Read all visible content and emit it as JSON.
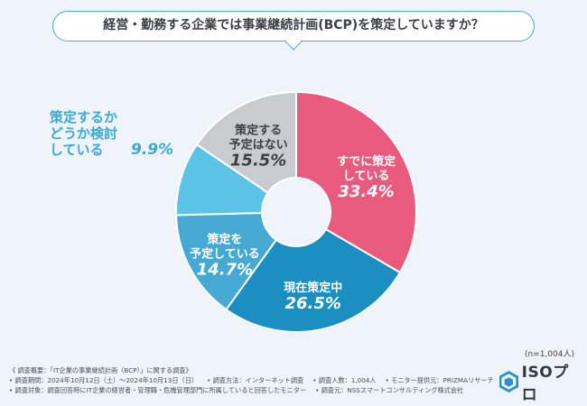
{
  "title": "経営・勤務する企業では事業継続計画(BCP)を策定していますか？",
  "sample_size": "(n=1,004人)",
  "chart_data": {
    "type": "pie",
    "donut": true,
    "title": "経営・勤務する企業では事業継続計画(BCP)を策定していますか？",
    "start": "top, clockwise",
    "slices": [
      {
        "lines": [
          "すでに策定",
          "している"
        ],
        "value": 33.4,
        "pct_label": "33.4%",
        "color": "#e85b7e",
        "label_color": "#ffffff",
        "outside": false
      },
      {
        "lines": [
          "現在策定中"
        ],
        "value": 26.5,
        "pct_label": "26.5%",
        "color": "#1b8fc2",
        "label_color": "#ffffff",
        "outside": false
      },
      {
        "lines": [
          "策定を",
          "予定している"
        ],
        "value": 14.7,
        "pct_label": "14.7%",
        "color": "#46a9d3",
        "label_color": "#ffffff",
        "outside": false
      },
      {
        "lines": [
          "策定するか",
          "どうか検討",
          "している"
        ],
        "value": 9.9,
        "pct_label": "9.9%",
        "color": "#5bc3e6",
        "label_color": "#3aa9d6",
        "outside": true
      },
      {
        "lines": [
          "策定する",
          "予定はない"
        ],
        "value": 15.5,
        "pct_label": "15.5%",
        "color": "#c9cccf",
        "label_color": "#3d4046",
        "outside": false
      }
    ]
  },
  "footer": {
    "line1": "《 調査概要：「IT企業の事業継続計画（BCP）」に関する調査》",
    "period": "• 調査期間：2024年10月12日（土）〜2024年10月13日（日）",
    "method": "• 調査方法：インターネット調査",
    "count": "• 調査人数：1,004人",
    "provider": "• モニター提供元：PRIZMAリサーチ",
    "target": "• 調査対象：調査回答時にIT企業の経営者・管理職・危機管理部門に所属していると回答したモニター",
    "sponsor": "• 調査元：NSSスマートコンサルティング株式会社"
  },
  "logo": {
    "text": "ISOプロ",
    "icon": "hexagon-logo-icon"
  }
}
